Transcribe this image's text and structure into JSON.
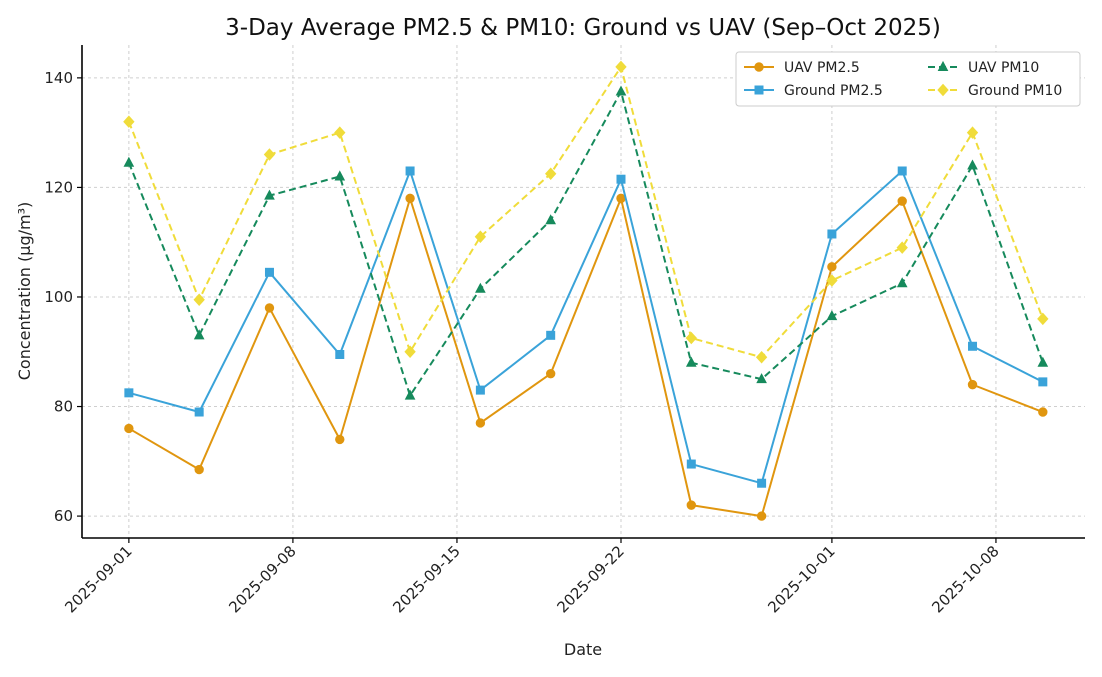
{
  "chart_data": {
    "type": "line",
    "title": "3-Day Average PM2.5 & PM10: Ground vs UAV (Sep–Oct 2025)",
    "xlabel": "Date",
    "ylabel": "Concentration (µg/m³)",
    "ylim": [
      56,
      146
    ],
    "yticks": [
      60,
      80,
      100,
      120,
      140
    ],
    "x": [
      "2025-09-01",
      "2025-09-04",
      "2025-09-07",
      "2025-09-10",
      "2025-09-13",
      "2025-09-16",
      "2025-09-19",
      "2025-09-22",
      "2025-09-25",
      "2025-09-28",
      "2025-10-01",
      "2025-10-04",
      "2025-10-07",
      "2025-10-10"
    ],
    "xday": [
      0,
      3,
      6,
      9,
      12,
      15,
      18,
      21,
      24,
      27,
      30,
      33,
      36,
      39
    ],
    "xlim_day": [
      -2,
      40.8
    ],
    "xticks": [
      {
        "label": "2025-09-01",
        "day": 0
      },
      {
        "label": "2025-09-08",
        "day": 7
      },
      {
        "label": "2025-09-15",
        "day": 14
      },
      {
        "label": "2025-09-22",
        "day": 21
      },
      {
        "label": "2025-10-01",
        "day": 30
      },
      {
        "label": "2025-10-08",
        "day": 37
      }
    ],
    "legend_position": "top-right",
    "grid": true,
    "series": [
      {
        "name": "UAV PM2.5",
        "color": "#e0960f",
        "marker": "circle",
        "dashed": false,
        "values": [
          76,
          68.5,
          98,
          74,
          118,
          77,
          86,
          118,
          62,
          60,
          105.5,
          117.5,
          84,
          79
        ]
      },
      {
        "name": "Ground PM2.5",
        "color": "#3aa3d9",
        "marker": "square",
        "dashed": false,
        "values": [
          82.5,
          79,
          104.5,
          89.5,
          123,
          83,
          93,
          121.5,
          69.5,
          66,
          111.5,
          123,
          91,
          84.5
        ]
      },
      {
        "name": "UAV PM10",
        "color": "#168a5c",
        "marker": "triangle",
        "dashed": true,
        "values": [
          124.5,
          93,
          118.5,
          122,
          82,
          101.5,
          114,
          137.5,
          88,
          85,
          96.5,
          102.5,
          124,
          88
        ]
      },
      {
        "name": "Ground PM10",
        "color": "#f0dc3a",
        "marker": "diamond",
        "dashed": true,
        "values": [
          132,
          99.5,
          126,
          130,
          90,
          111,
          122.5,
          142,
          92.5,
          89,
          103,
          109,
          130,
          96
        ]
      }
    ]
  }
}
